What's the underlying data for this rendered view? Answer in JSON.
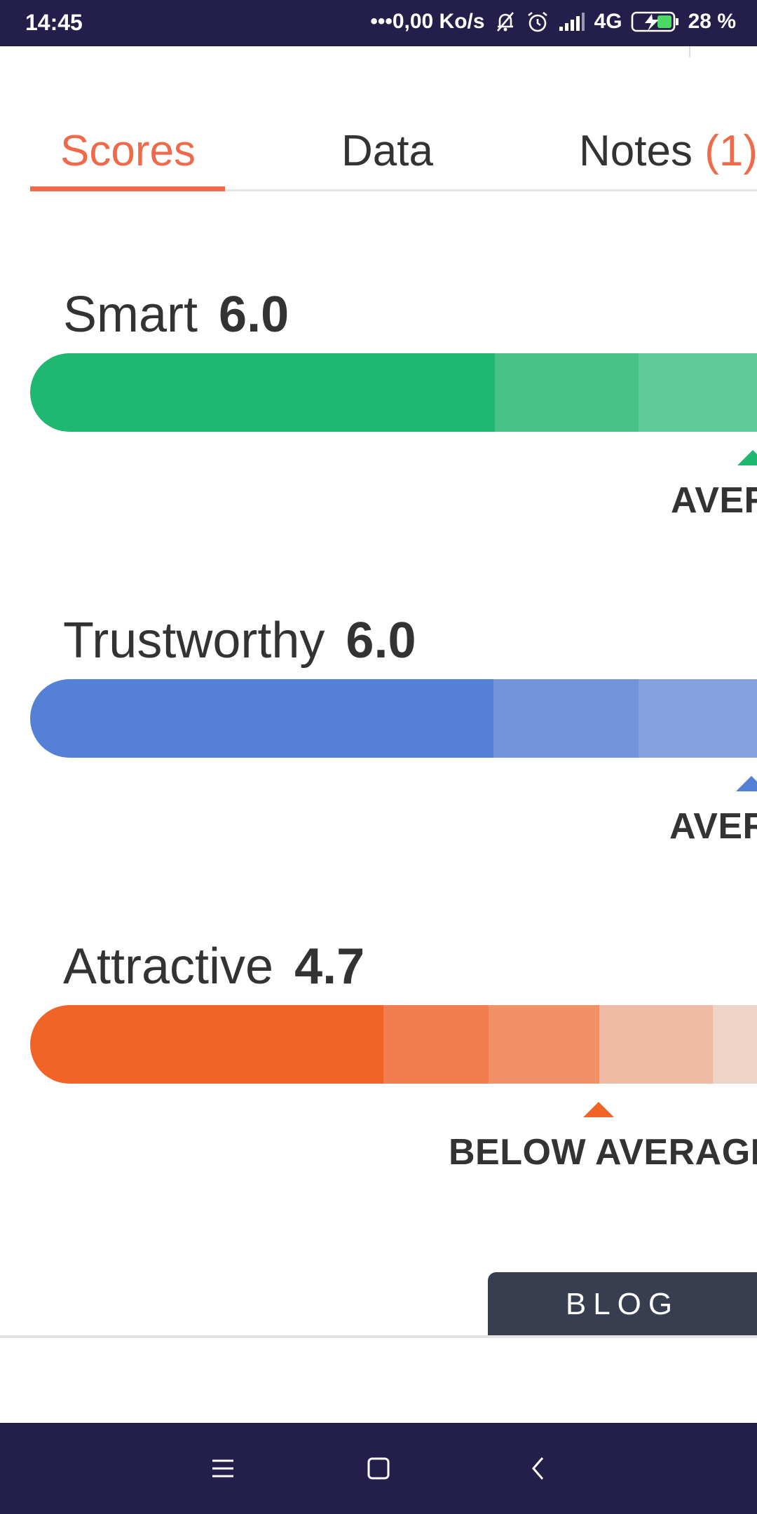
{
  "status_bar": {
    "time": "14:45",
    "network_speed": "•••0,00 Ko/s",
    "network_type": "4G",
    "battery": "28 %",
    "icons": [
      "mute-bell-icon",
      "alarm-icon",
      "signal-icon",
      "battery-charging-icon"
    ]
  },
  "tabs": [
    {
      "label": "Scores",
      "active": true
    },
    {
      "label": "Data",
      "active": false
    },
    {
      "label": "Notes",
      "count": "(1)",
      "active": false
    }
  ],
  "scores": [
    {
      "label": "Smart",
      "value": "6.0",
      "level_text": "AVER",
      "color": "#1fb870",
      "segments": [
        "#1fb870",
        "#48c387",
        "#60c998"
      ]
    },
    {
      "label": "Trustworthy",
      "value": "6.0",
      "level_text": "AVER",
      "color": "#5480d6",
      "segments": [
        "#5480d6",
        "#7294db",
        "#85a2df"
      ]
    },
    {
      "label": "Attractive",
      "value": "4.7",
      "level_text": "BELOW AVERAGE",
      "color": "#f06427",
      "segments": [
        "#f06427",
        "#f27d4e",
        "#f29165",
        "#efbba4",
        "#f0d3c7"
      ]
    }
  ],
  "blog_button": {
    "label": "BLOG"
  },
  "nav_bar": {
    "icons": [
      "menu-icon",
      "home-icon",
      "back-icon"
    ]
  }
}
